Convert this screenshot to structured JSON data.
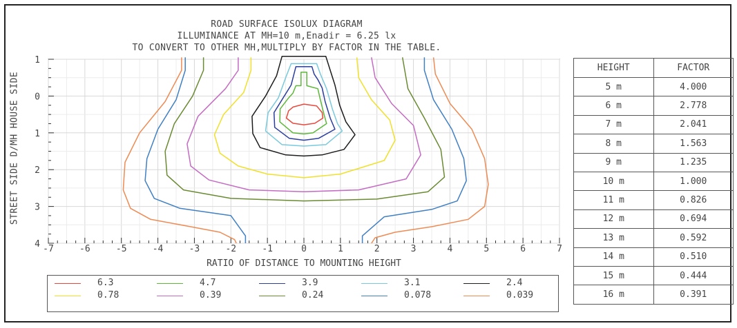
{
  "title_lines": [
    "ROAD SURFACE ISOLUX DIAGRAM",
    "ILLUMINANCE AT MH=10 m,Enadir  = 6.25 lx",
    "TO CONVERT TO OTHER MH,MULTIPLY BY FACTOR IN THE TABLE."
  ],
  "ylabel": "STREET SIDE  D/MH  HOUSE SIDE",
  "xlabel": "RATIO OF DISTANCE TO MOUNTING HEIGHT",
  "factor_table": {
    "headers": [
      "HEIGHT",
      "FACTOR"
    ],
    "rows": [
      [
        "5 m",
        "4.000"
      ],
      [
        "6 m",
        "2.778"
      ],
      [
        "7 m",
        "2.041"
      ],
      [
        "8 m",
        "1.563"
      ],
      [
        "9 m",
        "1.235"
      ],
      [
        "10 m",
        "1.000"
      ],
      [
        "11 m",
        "0.826"
      ],
      [
        "12 m",
        "0.694"
      ],
      [
        "13 m",
        "0.592"
      ],
      [
        "14 m",
        "0.510"
      ],
      [
        "15 m",
        "0.444"
      ],
      [
        "16 m",
        "0.391"
      ]
    ]
  },
  "chart_data": {
    "type": "isolux contour",
    "title": "ROAD SURFACE ISOLUX DIAGRAM",
    "xlabel": "RATIO OF DISTANCE TO MOUNTING HEIGHT",
    "ylabel": "STREET SIDE  D/MH  HOUSE SIDE",
    "xlim": [
      -7,
      7
    ],
    "ylim": [
      -1,
      4
    ],
    "x_ticks": [
      "-7",
      "-6",
      "-5",
      "-4",
      "-3",
      "-2",
      "-1",
      "0",
      "1",
      "2",
      "3",
      "4",
      "5",
      "6",
      "7"
    ],
    "y_tick_values": [
      -1,
      0,
      1,
      2,
      3,
      4
    ],
    "y_ticks": [
      "1",
      "0",
      "1",
      "2",
      "3",
      "4"
    ],
    "grid": true,
    "legend_placement": "bottom",
    "series": [
      {
        "name": "6.3",
        "color": "#e8483c",
        "closed": true,
        "points": [
          [
            0,
            0.22
          ],
          [
            0.35,
            0.27
          ],
          [
            0.5,
            0.45
          ],
          [
            0.52,
            0.6
          ],
          [
            0.3,
            0.74
          ],
          [
            0,
            0.78
          ],
          [
            -0.3,
            0.74
          ],
          [
            -0.48,
            0.6
          ],
          [
            -0.42,
            0.4
          ],
          [
            -0.3,
            0.3
          ]
        ]
      },
      {
        "name": "4.7",
        "color": "#5db83a",
        "closed": true,
        "points": [
          [
            -0.08,
            -0.65
          ],
          [
            0.08,
            -0.65
          ],
          [
            0.08,
            -0.28
          ],
          [
            0.38,
            -0.2
          ],
          [
            0.45,
            0.1
          ],
          [
            0.55,
            0.5
          ],
          [
            0.62,
            0.75
          ],
          [
            0.25,
            1.0
          ],
          [
            0,
            1.03
          ],
          [
            -0.3,
            1.0
          ],
          [
            -0.66,
            0.7
          ],
          [
            -0.65,
            0.35
          ],
          [
            -0.42,
            0.05
          ],
          [
            -0.3,
            -0.08
          ],
          [
            -0.22,
            -0.28
          ],
          [
            -0.08,
            -0.28
          ]
        ]
      },
      {
        "name": "3.9",
        "color": "#2a3d9e",
        "closed": true,
        "points": [
          [
            -0.22,
            -0.8
          ],
          [
            0.22,
            -0.8
          ],
          [
            0.28,
            -0.6
          ],
          [
            0.38,
            -0.45
          ],
          [
            0.5,
            -0.22
          ],
          [
            0.58,
            0.15
          ],
          [
            0.72,
            0.6
          ],
          [
            0.85,
            0.9
          ],
          [
            0.4,
            1.15
          ],
          [
            0,
            1.2
          ],
          [
            -0.4,
            1.15
          ],
          [
            -0.8,
            0.85
          ],
          [
            -0.82,
            0.45
          ],
          [
            -0.6,
            0.1
          ],
          [
            -0.35,
            -0.3
          ]
        ]
      },
      {
        "name": "3.1",
        "color": "#78c9dc",
        "closed": true,
        "points": [
          [
            -0.35,
            -0.88
          ],
          [
            0.35,
            -0.88
          ],
          [
            0.45,
            -0.6
          ],
          [
            0.62,
            -0.2
          ],
          [
            0.78,
            0.35
          ],
          [
            0.92,
            0.75
          ],
          [
            1.05,
            0.95
          ],
          [
            0.6,
            1.32
          ],
          [
            0,
            1.36
          ],
          [
            -0.6,
            1.32
          ],
          [
            -1.05,
            0.95
          ],
          [
            -0.98,
            0.45
          ],
          [
            -0.7,
            0.05
          ],
          [
            -0.5,
            -0.5
          ]
        ]
      },
      {
        "name": "2.4",
        "color": "#1c1c1c",
        "closed": true,
        "points": [
          [
            -0.6,
            -1.08
          ],
          [
            0.6,
            -1.08
          ],
          [
            0.72,
            -0.7
          ],
          [
            0.85,
            -0.3
          ],
          [
            0.98,
            0.25
          ],
          [
            1.15,
            0.7
          ],
          [
            1.4,
            1.05
          ],
          [
            1.1,
            1.45
          ],
          [
            0.5,
            1.6
          ],
          [
            0,
            1.63
          ],
          [
            -0.5,
            1.6
          ],
          [
            -1.2,
            1.4
          ],
          [
            -1.4,
            1.02
          ],
          [
            -1.42,
            0.55
          ],
          [
            -1.05,
            0.0
          ],
          [
            -0.75,
            -0.55
          ]
        ]
      },
      {
        "name": "0.78",
        "color": "#f0e02a",
        "closed": false,
        "points": [
          [
            -1.45,
            -1.05
          ],
          [
            -1.45,
            -0.7
          ],
          [
            -1.65,
            -0.1
          ],
          [
            -2.2,
            0.5
          ],
          [
            -2.45,
            1.05
          ],
          [
            -2.3,
            1.55
          ],
          [
            -1.8,
            1.9
          ],
          [
            -1,
            2.12
          ],
          [
            0,
            2.22
          ],
          [
            1,
            2.12
          ],
          [
            2.2,
            1.75
          ],
          [
            2.5,
            1.2
          ],
          [
            2.35,
            0.65
          ],
          [
            1.85,
            0.1
          ],
          [
            1.5,
            -0.5
          ],
          [
            1.45,
            -1.05
          ]
        ]
      },
      {
        "name": "0.39",
        "color": "#c46bc3",
        "closed": false,
        "points": [
          [
            -1.8,
            -1.05
          ],
          [
            -1.8,
            -0.7
          ],
          [
            -2.15,
            -0.2
          ],
          [
            -2.9,
            0.55
          ],
          [
            -3.2,
            1.3
          ],
          [
            -3.1,
            1.9
          ],
          [
            -2.6,
            2.28
          ],
          [
            -1.5,
            2.55
          ],
          [
            0,
            2.6
          ],
          [
            1.5,
            2.55
          ],
          [
            2.8,
            2.25
          ],
          [
            3.2,
            1.6
          ],
          [
            3.0,
            0.8
          ],
          [
            2.4,
            0.2
          ],
          [
            1.95,
            -0.5
          ],
          [
            1.85,
            -1.05
          ]
        ]
      },
      {
        "name": "0.24",
        "color": "#6a8a32",
        "closed": false,
        "points": [
          [
            -2.75,
            -1.05
          ],
          [
            -2.75,
            -0.7
          ],
          [
            -3.05,
            0.0
          ],
          [
            -3.55,
            0.75
          ],
          [
            -3.8,
            1.5
          ],
          [
            -3.75,
            2.15
          ],
          [
            -3.3,
            2.55
          ],
          [
            -2.0,
            2.78
          ],
          [
            0,
            2.85
          ],
          [
            2.0,
            2.8
          ],
          [
            3.4,
            2.6
          ],
          [
            3.85,
            2.2
          ],
          [
            3.75,
            1.45
          ],
          [
            3.3,
            0.6
          ],
          [
            2.85,
            -0.2
          ],
          [
            2.7,
            -1.05
          ]
        ]
      },
      {
        "name": "0.078",
        "color": "#3f7fc4",
        "closed": false,
        "points": [
          [
            -3.25,
            -1.05
          ],
          [
            -3.25,
            -0.7
          ],
          [
            -3.5,
            0.1
          ],
          [
            -4.0,
            0.9
          ],
          [
            -4.3,
            1.7
          ],
          [
            -4.35,
            2.3
          ],
          [
            -4.1,
            2.78
          ],
          [
            -3.4,
            3.05
          ],
          [
            -2.0,
            3.25
          ],
          [
            -1.6,
            3.8
          ],
          [
            -1.6,
            4.0
          ],
          "BREAK",
          [
            1.6,
            4.0
          ],
          [
            1.6,
            3.8
          ],
          [
            2.2,
            3.28
          ],
          [
            3.5,
            3.08
          ],
          [
            4.2,
            2.85
          ],
          [
            4.45,
            2.3
          ],
          [
            4.38,
            1.7
          ],
          [
            4.05,
            0.9
          ],
          [
            3.55,
            0.1
          ],
          [
            3.3,
            -0.7
          ],
          [
            3.3,
            -1.05
          ]
        ]
      },
      {
        "name": "0.039",
        "color": "#ee8a52",
        "closed": false,
        "points": [
          [
            -3.35,
            -1.05
          ],
          [
            -3.35,
            -0.7
          ],
          [
            -3.8,
            0.15
          ],
          [
            -4.5,
            1.0
          ],
          [
            -4.9,
            1.8
          ],
          [
            -4.95,
            2.55
          ],
          [
            -4.75,
            3.05
          ],
          [
            -4.2,
            3.35
          ],
          [
            -3.1,
            3.55
          ],
          [
            -2.3,
            3.7
          ],
          [
            -1.9,
            3.9
          ],
          [
            -1.85,
            4.0
          ],
          "BREAK",
          [
            1.85,
            4.0
          ],
          [
            1.95,
            3.85
          ],
          [
            2.5,
            3.7
          ],
          [
            3.5,
            3.55
          ],
          [
            4.5,
            3.35
          ],
          [
            4.95,
            3.0
          ],
          [
            5.05,
            2.4
          ],
          [
            4.95,
            1.7
          ],
          [
            4.6,
            0.9
          ],
          [
            4.0,
            0.2
          ],
          [
            3.6,
            -0.6
          ],
          [
            3.55,
            -1.05
          ]
        ]
      }
    ]
  }
}
